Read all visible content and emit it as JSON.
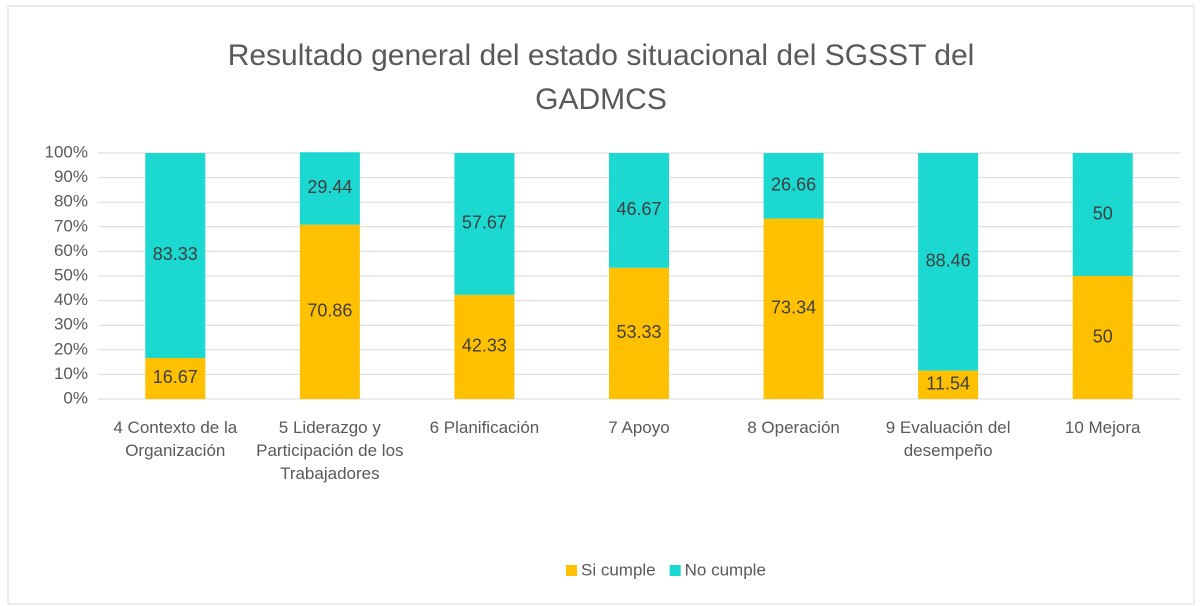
{
  "chart_data": {
    "type": "stacked_bar",
    "title": "Resultado general del estado situacional del SGSST del GADMCS",
    "categories": [
      "4 Contexto de la Organización",
      "5 Liderazgo y Participación de los Trabajadores",
      "6 Planificación",
      "7 Apoyo",
      "8 Operación",
      "9 Evaluación del desempeño",
      "10 Mejora"
    ],
    "series": [
      {
        "name": "Si cumple",
        "color": "#FFC000",
        "values": [
          16.67,
          70.86,
          42.33,
          53.33,
          73.34,
          11.54,
          50
        ]
      },
      {
        "name": "No cumple",
        "color": "#1BD8D0",
        "values": [
          83.33,
          29.44,
          57.67,
          46.67,
          26.66,
          88.46,
          50
        ]
      }
    ],
    "ylim": [
      0,
      100
    ],
    "yticks": [
      {
        "value": 0,
        "label": "0%"
      },
      {
        "value": 10,
        "label": "10%"
      },
      {
        "value": 20,
        "label": "20%"
      },
      {
        "value": 30,
        "label": "30%"
      },
      {
        "value": 40,
        "label": "40%"
      },
      {
        "value": 50,
        "label": "50%"
      },
      {
        "value": 60,
        "label": "60%"
      },
      {
        "value": 70,
        "label": "70%"
      },
      {
        "value": 80,
        "label": "80%"
      },
      {
        "value": 90,
        "label": "90%"
      },
      {
        "value": 100,
        "label": "100%"
      }
    ],
    "grid": true,
    "legend": "bottom"
  }
}
